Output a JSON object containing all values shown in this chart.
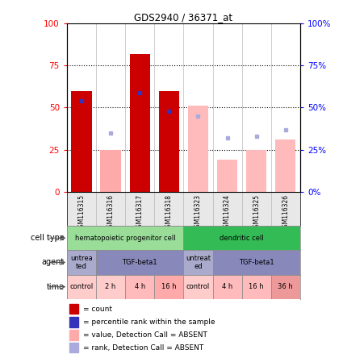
{
  "title": "GDS2940 / 36371_at",
  "samples": [
    "GSM116315",
    "GSM116316",
    "GSM116317",
    "GSM116318",
    "GSM116323",
    "GSM116324",
    "GSM116325",
    "GSM116326"
  ],
  "bar_values": [
    60,
    25,
    82,
    60,
    51,
    19,
    25,
    31
  ],
  "bar_colors": [
    "#cc0000",
    "#ffaaaa",
    "#cc0000",
    "#cc0000",
    "#ffbbbb",
    "#ffbbbb",
    "#ffbbbb",
    "#ffbbbb"
  ],
  "dot_values": [
    54,
    35,
    59,
    48,
    45,
    32,
    33,
    37
  ],
  "dot_colors": [
    "#3333bb",
    "#aaaadd",
    "#3333bb",
    "#3333bb",
    "#aaaadd",
    "#aaaadd",
    "#aaaadd",
    "#aaaadd"
  ],
  "ylim": [
    0,
    100
  ],
  "yticks": [
    0,
    25,
    50,
    75,
    100
  ],
  "cell_types": [
    {
      "label": "hematopoietic progenitor cell",
      "span": [
        0,
        4
      ],
      "color": "#99dd99"
    },
    {
      "label": "dendritic cell",
      "span": [
        4,
        8
      ],
      "color": "#33bb55"
    }
  ],
  "agents": [
    {
      "label": "untrea\nted",
      "span": [
        0,
        1
      ],
      "color": "#aaaacc"
    },
    {
      "label": "TGF-beta1",
      "span": [
        1,
        4
      ],
      "color": "#8888bb"
    },
    {
      "label": "untreat\ned",
      "span": [
        4,
        5
      ],
      "color": "#aaaacc"
    },
    {
      "label": "TGF-beta1",
      "span": [
        5,
        8
      ],
      "color": "#8888bb"
    }
  ],
  "times": [
    {
      "label": "control",
      "span": [
        0,
        1
      ],
      "color": "#ffcccc"
    },
    {
      "label": "2 h",
      "span": [
        1,
        2
      ],
      "color": "#ffcccc"
    },
    {
      "label": "4 h",
      "span": [
        2,
        3
      ],
      "color": "#ffbbbb"
    },
    {
      "label": "16 h",
      "span": [
        3,
        4
      ],
      "color": "#ffaaaa"
    },
    {
      "label": "control",
      "span": [
        4,
        5
      ],
      "color": "#ffcccc"
    },
    {
      "label": "4 h",
      "span": [
        5,
        6
      ],
      "color": "#ffbbbb"
    },
    {
      "label": "16 h",
      "span": [
        6,
        7
      ],
      "color": "#ffbbbb"
    },
    {
      "label": "36 h",
      "span": [
        7,
        8
      ],
      "color": "#ee9999"
    }
  ],
  "row_labels": [
    "cell type",
    "agent",
    "time"
  ],
  "legend": [
    {
      "color": "#cc0000",
      "label": "count"
    },
    {
      "color": "#3333bb",
      "label": "percentile rank within the sample"
    },
    {
      "color": "#ffaaaa",
      "label": "value, Detection Call = ABSENT"
    },
    {
      "color": "#aaaadd",
      "label": "rank, Detection Call = ABSENT"
    }
  ],
  "background_color": "#ffffff"
}
